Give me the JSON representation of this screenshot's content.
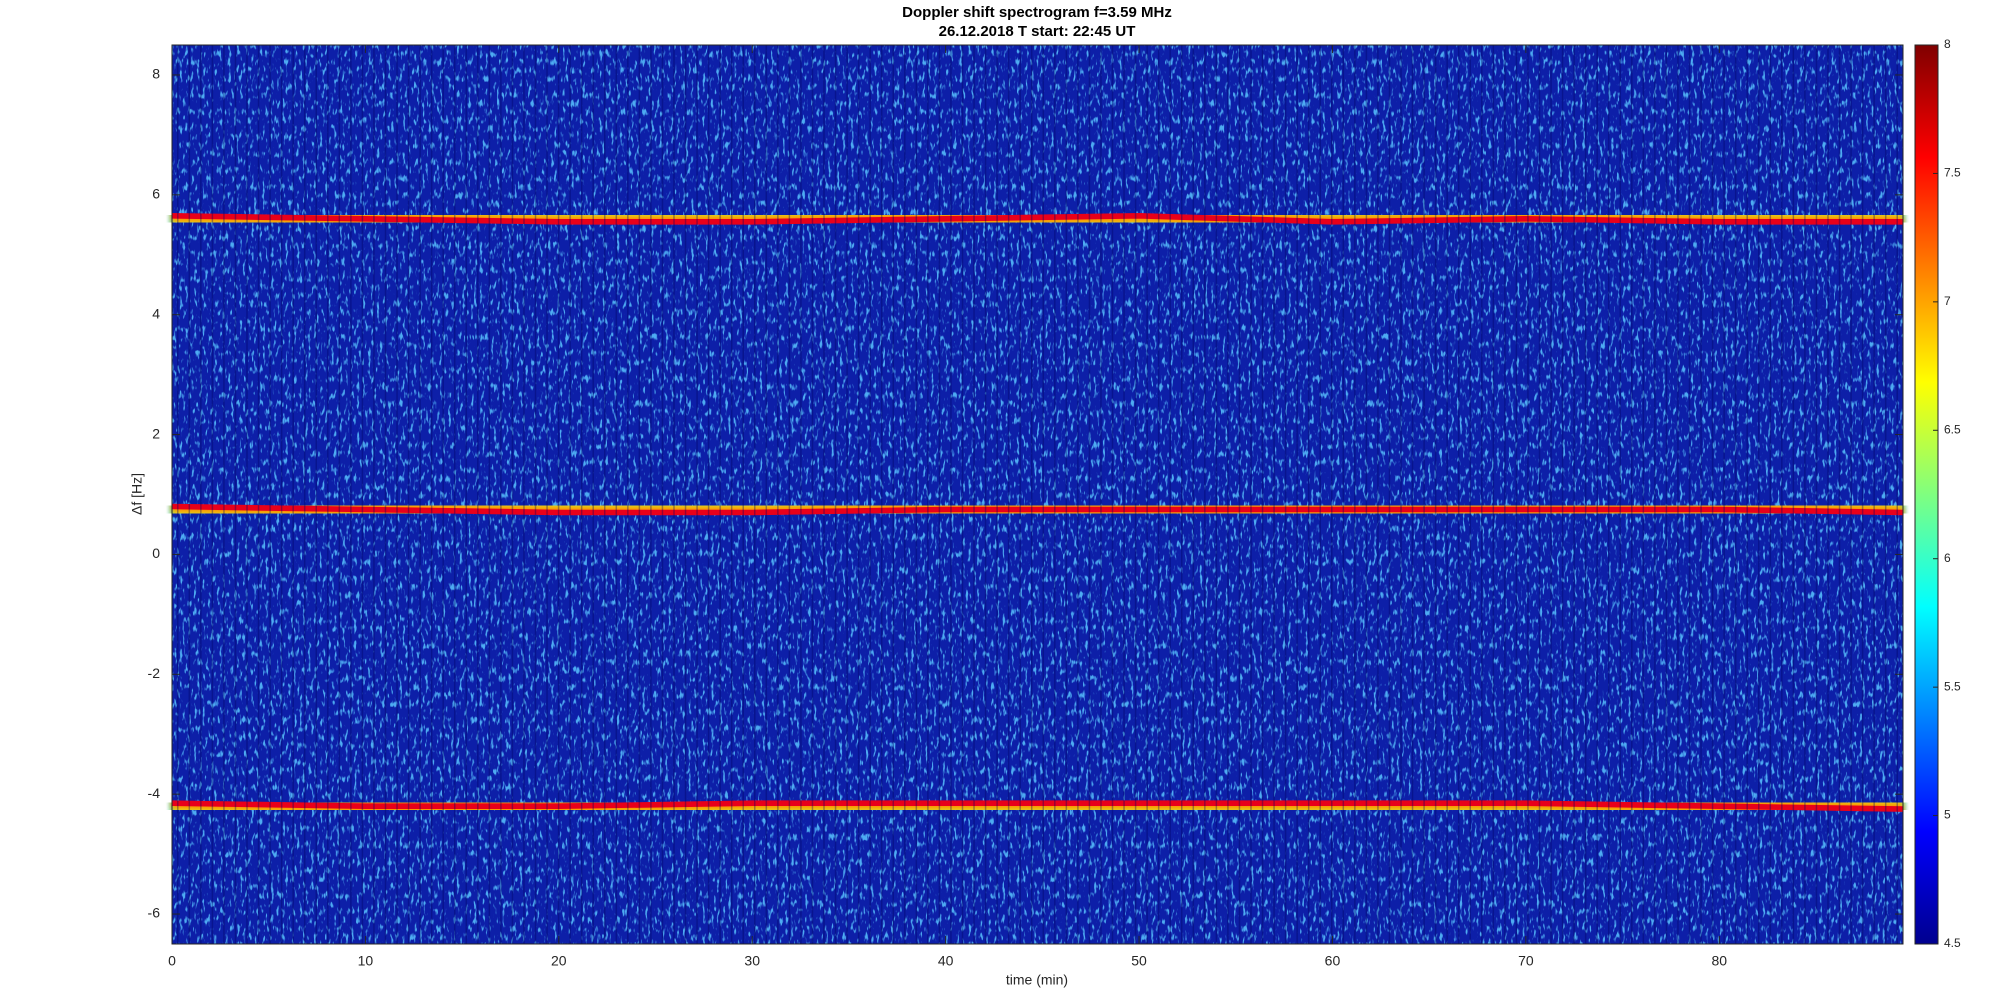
{
  "chart_data": {
    "type": "spectrogram",
    "title": "Doppler shift spectrogram f=3.59 MHz",
    "subtitle": "26.12.2018   T start: 22:45 UT",
    "x_label": "time (min)",
    "y_label": "Δf [Hz]",
    "xlim": [
      0,
      89.5
    ],
    "xticks": [
      0,
      10,
      20,
      30,
      40,
      50,
      60,
      70,
      80
    ],
    "ylim": [
      -6.5,
      8.5
    ],
    "yticks": [
      -6,
      -4,
      -2,
      0,
      2,
      4,
      6,
      8
    ],
    "colormap": "jet",
    "clim": [
      4.5,
      8
    ],
    "cticks": [
      4.5,
      5,
      5.5,
      6,
      6.5,
      7,
      7.5,
      8
    ],
    "x": [
      0,
      10,
      20,
      30,
      40,
      50,
      60,
      70,
      80,
      89.5
    ],
    "series": [
      {
        "values": [
          5.65,
          5.6,
          5.55,
          5.55,
          5.6,
          5.65,
          5.55,
          5.6,
          5.55,
          5.55
        ]
      },
      {
        "values": [
          0.8,
          0.75,
          0.7,
          0.7,
          0.75,
          0.75,
          0.75,
          0.75,
          0.75,
          0.7
        ]
      },
      {
        "values": [
          -4.15,
          -4.2,
          -4.2,
          -4.15,
          -4.15,
          -4.15,
          -4.15,
          -4.15,
          -4.2,
          -4.25
        ]
      }
    ]
  }
}
